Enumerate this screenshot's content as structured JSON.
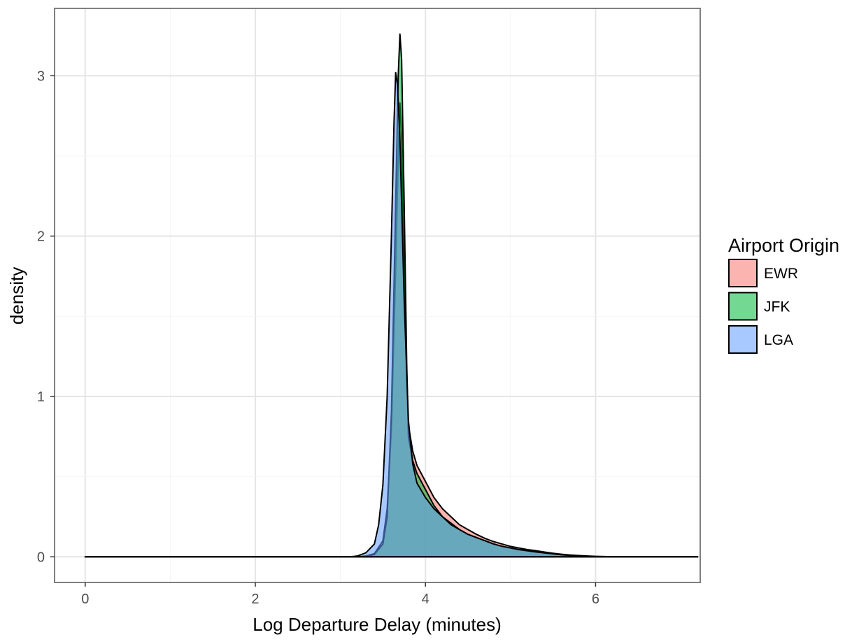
{
  "chart_data": {
    "type": "area",
    "subtype": "overlapping-density",
    "title": "",
    "xlabel": "Log Departure Delay (minutes)",
    "ylabel": "density",
    "xlim": [
      -0.36,
      7.23
    ],
    "ylim": [
      -0.16,
      3.42
    ],
    "x_ticks": [
      0,
      2,
      4,
      6
    ],
    "y_ticks": [
      0,
      1,
      2,
      3
    ],
    "grid": true,
    "legend": {
      "title": "Airport Origin",
      "position": "right"
    },
    "fill_opacity": 0.55,
    "series": [
      {
        "name": "EWR",
        "color": "#F8766D",
        "points": [
          [
            0,
            0
          ],
          [
            3.2,
            0
          ],
          [
            3.3,
            0.005
          ],
          [
            3.4,
            0.02
          ],
          [
            3.5,
            0.1
          ],
          [
            3.55,
            0.3
          ],
          [
            3.6,
            0.8
          ],
          [
            3.65,
            1.8
          ],
          [
            3.68,
            2.5
          ],
          [
            3.7,
            2.83
          ],
          [
            3.72,
            2.6
          ],
          [
            3.75,
            1.8
          ],
          [
            3.78,
            1.1
          ],
          [
            3.8,
            0.82
          ],
          [
            3.85,
            0.66
          ],
          [
            3.9,
            0.57
          ],
          [
            4.0,
            0.47
          ],
          [
            4.1,
            0.37
          ],
          [
            4.2,
            0.3
          ],
          [
            4.3,
            0.25
          ],
          [
            4.4,
            0.2
          ],
          [
            4.5,
            0.17
          ],
          [
            4.6,
            0.14
          ],
          [
            4.7,
            0.115
          ],
          [
            4.8,
            0.095
          ],
          [
            4.9,
            0.08
          ],
          [
            5.0,
            0.065
          ],
          [
            5.1,
            0.055
          ],
          [
            5.2,
            0.045
          ],
          [
            5.3,
            0.038
          ],
          [
            5.4,
            0.03
          ],
          [
            5.5,
            0.022
          ],
          [
            5.6,
            0.016
          ],
          [
            5.7,
            0.011
          ],
          [
            5.8,
            0.008
          ],
          [
            5.9,
            0.005
          ],
          [
            6.0,
            0.003
          ],
          [
            6.2,
            0.001
          ],
          [
            6.5,
            0
          ],
          [
            7.2,
            0
          ]
        ]
      },
      {
        "name": "JFK",
        "color": "#00BA38",
        "points": [
          [
            0,
            0
          ],
          [
            3.2,
            0
          ],
          [
            3.3,
            0.004
          ],
          [
            3.4,
            0.015
          ],
          [
            3.5,
            0.08
          ],
          [
            3.55,
            0.25
          ],
          [
            3.6,
            0.9
          ],
          [
            3.65,
            2.2
          ],
          [
            3.68,
            3.0
          ],
          [
            3.7,
            3.26
          ],
          [
            3.72,
            3.1
          ],
          [
            3.75,
            2.2
          ],
          [
            3.78,
            1.2
          ],
          [
            3.8,
            0.75
          ],
          [
            3.85,
            0.6
          ],
          [
            3.9,
            0.52
          ],
          [
            4.0,
            0.42
          ],
          [
            4.1,
            0.32
          ],
          [
            4.2,
            0.25
          ],
          [
            4.3,
            0.21
          ],
          [
            4.4,
            0.17
          ],
          [
            4.5,
            0.14
          ],
          [
            4.6,
            0.12
          ],
          [
            4.7,
            0.1
          ],
          [
            4.8,
            0.08
          ],
          [
            4.9,
            0.065
          ],
          [
            5.0,
            0.055
          ],
          [
            5.1,
            0.045
          ],
          [
            5.2,
            0.04
          ],
          [
            5.3,
            0.032
          ],
          [
            5.4,
            0.025
          ],
          [
            5.5,
            0.019
          ],
          [
            5.6,
            0.014
          ],
          [
            5.7,
            0.01
          ],
          [
            5.8,
            0.007
          ],
          [
            5.9,
            0.004
          ],
          [
            6.0,
            0.002
          ],
          [
            6.2,
            0.001
          ],
          [
            6.5,
            0
          ],
          [
            7.2,
            0
          ]
        ]
      },
      {
        "name": "LGA",
        "color": "#619CFF",
        "points": [
          [
            0,
            0
          ],
          [
            3.1,
            0
          ],
          [
            3.2,
            0.005
          ],
          [
            3.3,
            0.025
          ],
          [
            3.4,
            0.08
          ],
          [
            3.45,
            0.2
          ],
          [
            3.5,
            0.45
          ],
          [
            3.55,
            1.0
          ],
          [
            3.6,
            2.0
          ],
          [
            3.63,
            2.7
          ],
          [
            3.65,
            3.02
          ],
          [
            3.67,
            2.95
          ],
          [
            3.7,
            2.6
          ],
          [
            3.75,
            1.6
          ],
          [
            3.8,
            0.85
          ],
          [
            3.85,
            0.58
          ],
          [
            3.9,
            0.46
          ],
          [
            4.0,
            0.37
          ],
          [
            4.1,
            0.3
          ],
          [
            4.2,
            0.25
          ],
          [
            4.3,
            0.2
          ],
          [
            4.4,
            0.17
          ],
          [
            4.5,
            0.14
          ],
          [
            4.6,
            0.12
          ],
          [
            4.7,
            0.1
          ],
          [
            4.8,
            0.08
          ],
          [
            4.9,
            0.066
          ],
          [
            5.0,
            0.055
          ],
          [
            5.1,
            0.045
          ],
          [
            5.2,
            0.037
          ],
          [
            5.3,
            0.03
          ],
          [
            5.4,
            0.024
          ],
          [
            5.5,
            0.018
          ],
          [
            5.6,
            0.013
          ],
          [
            5.7,
            0.009
          ],
          [
            5.8,
            0.006
          ],
          [
            5.9,
            0.004
          ],
          [
            6.0,
            0.002
          ],
          [
            6.2,
            0.001
          ],
          [
            6.5,
            0
          ],
          [
            7.2,
            0
          ]
        ]
      }
    ]
  }
}
